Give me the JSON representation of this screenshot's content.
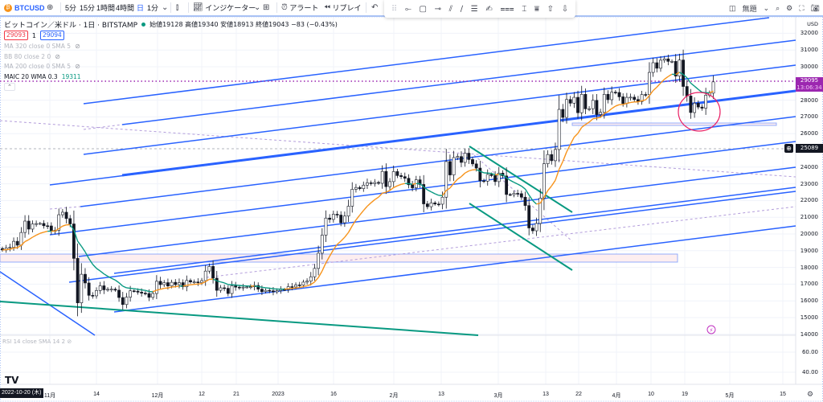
{
  "toolbar": {
    "symbol": "BTCUSD",
    "add_icon": "plus-circle-icon",
    "intervals": [
      "5分",
      "15分",
      "1時間",
      "4時間",
      "日",
      "1分"
    ],
    "active_interval": "日",
    "indicators_label": "インジケーター",
    "alert_label": "アラート",
    "replay_label": "リプレイ",
    "layout_name": "無題",
    "drawing_tools": [
      "horizontal-line-icon",
      "rectangle-icon",
      "ray-icon",
      "parallel-channel-icon",
      "trend-line-icon",
      "fib-icon",
      "brush-icon",
      "channel-icon",
      "text-icon",
      "pattern-icon",
      "arrow-up-icon",
      "arrow-down-icon"
    ]
  },
  "legend": {
    "title": "ビットコイン／米ドル · 1日 · BITSTAMP",
    "ohlc": "始値19128 高値19340 安値18913 終値19043 −83 (−0.43%)",
    "bid": "29093",
    "spread": "1",
    "ask": "29094",
    "indicators": [
      {
        "label": "MA 320 close 0 SMA 5",
        "hidden": true
      },
      {
        "label": "BB 80 close 2 0",
        "hidden": true
      },
      {
        "label": "MA 200 close 0 SMA 5",
        "hidden": true
      },
      {
        "label": "MAIC 20 WMA 0.3",
        "value": "19311",
        "hidden": false
      }
    ],
    "rsi": "RSI 14 close SMA 14 2"
  },
  "price_axis": {
    "currency": "USD",
    "labels": [
      32000,
      31000,
      30000,
      28000,
      27000,
      26000,
      24000,
      23000,
      22000,
      21000,
      20000,
      19000,
      18000,
      17000,
      16000,
      15000,
      14000
    ],
    "last_price": "29095",
    "countdown": "13:06:34",
    "crosshair_price": "25089",
    "rsi_labels": [
      "60.00",
      "40.00"
    ]
  },
  "time_axis": {
    "labels": [
      "11月",
      "14",
      "12月",
      "12",
      "21",
      "2023",
      "16",
      "2月",
      "13",
      "3月",
      "13",
      "22",
      "4月",
      "10",
      "19",
      "5月",
      "15"
    ],
    "cursor_date": "2022-10-20 (木)"
  },
  "colors": {
    "up": "#ffffff",
    "down": "#131722",
    "ma_up": "#f7931a",
    "ma_down": "#089981",
    "lines": "#2962ff",
    "last_price": "#9c27b0",
    "circle": "#e91e63"
  },
  "chart_data": {
    "type": "candlestick",
    "start_date": "2022-10-20",
    "interval": "1D",
    "ylim": [
      14000,
      33000
    ],
    "closes": [
      19043,
      19160,
      19200,
      19560,
      19330,
      20090,
      20770,
      20290,
      20600,
      20620,
      20630,
      20490,
      20480,
      20160,
      20220,
      21150,
      21300,
      20920,
      20600,
      18540,
      15880,
      17590,
      17070,
      16330,
      16300,
      16620,
      16900,
      16660,
      16690,
      16700,
      16640,
      16200,
      15780,
      16220,
      16600,
      16580,
      16520,
      16460,
      16440,
      16210,
      16440,
      17170,
      16970,
      17090,
      16890,
      17110,
      16970,
      17090,
      16840,
      17220,
      17130,
      17130,
      17090,
      17210,
      17780,
      18060,
      17360,
      16630,
      16780,
      16750,
      16440,
      16900,
      16820,
      16780,
      16820,
      16830,
      16840,
      16920,
      16700,
      16550,
      16630,
      16600,
      16540,
      16610,
      16680,
      16670,
      16850,
      16830,
      16950,
      16940,
      17120,
      17180,
      17440,
      17940,
      18850,
      19930,
      20950,
      20870,
      21180,
      21130,
      20670,
      21070,
      21660,
      22670,
      22780,
      22710,
      22920,
      23060,
      23010,
      23080,
      23030,
      23740,
      22830,
      23130,
      23730,
      23490,
      23430,
      23330,
      22940,
      22760,
      23240,
      22960,
      21800,
      21630,
      21860,
      21790,
      21780,
      22200,
      24330,
      23530,
      24570,
      24630,
      24280,
      24830,
      24450,
      24190,
      23940,
      23180,
      23160,
      23560,
      23490,
      23130,
      23640,
      23470,
      22360,
      22350,
      22430,
      22410,
      22200,
      21700,
      20360,
      20190,
      20630,
      22140,
      24200,
      24750,
      24380,
      25050,
      27450,
      26970,
      28040,
      27820,
      28170,
      27250,
      28350,
      27480,
      27490,
      27990,
      27140,
      27270,
      28350,
      28030,
      28480,
      28460,
      28200,
      27800,
      28170,
      28180,
      28040,
      27920,
      28340,
      28330,
      29660,
      30240,
      29910,
      30390,
      30470,
      30320,
      30320,
      29440,
      30400,
      28820,
      28250,
      27260,
      27820,
      27590,
      27520,
      28300,
      28420,
      29095
    ]
  }
}
